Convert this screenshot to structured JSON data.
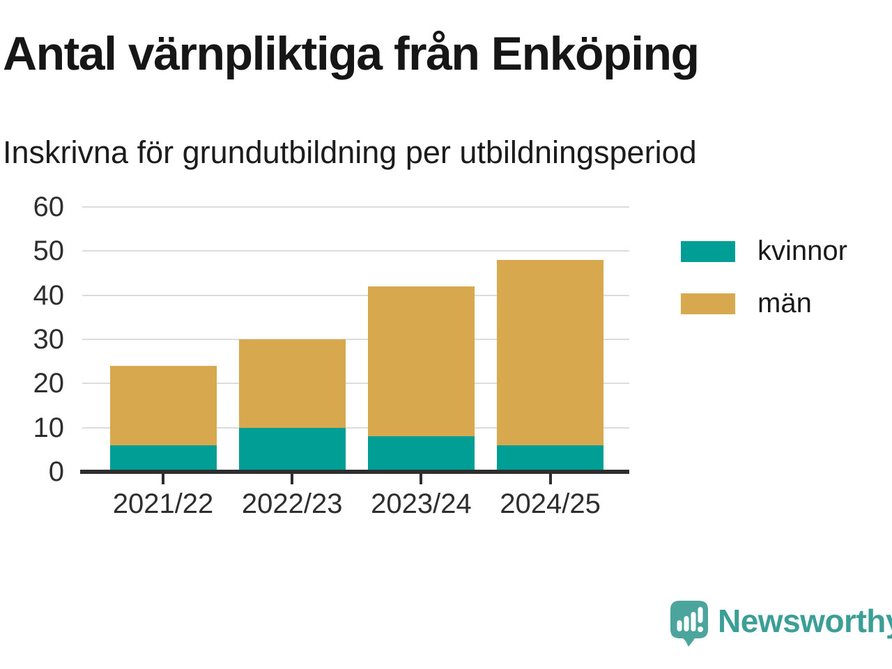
{
  "header": {
    "title": "Antal värnpliktiga från Enköping",
    "subtitle": "Inskrivna för grundutbildning per utbildningsperiod"
  },
  "chart_data": {
    "type": "bar",
    "stacked": true,
    "title": "Antal värnpliktiga från Enköping",
    "subtitle": "Inskrivna för grundutbildning per utbildningsperiod",
    "categories": [
      "2021/22",
      "2022/23",
      "2023/24",
      "2024/25"
    ],
    "series": [
      {
        "name": "kvinnor",
        "color": "#009e95",
        "values": [
          6,
          10,
          8,
          6
        ]
      },
      {
        "name": "män",
        "color": "#d8a84e",
        "values": [
          18,
          20,
          34,
          42
        ]
      }
    ],
    "totals": [
      24,
      30,
      42,
      48
    ],
    "xlabel": "",
    "ylabel": "",
    "ylim": [
      0,
      60
    ],
    "y_ticks": [
      0,
      10,
      20,
      30,
      40,
      50,
      60
    ],
    "grid": true,
    "legend_position": "right"
  },
  "footer": {
    "brand": "Newsworthy",
    "brand_color": "#3b9e97",
    "bubble_color": "#4ba59d"
  }
}
